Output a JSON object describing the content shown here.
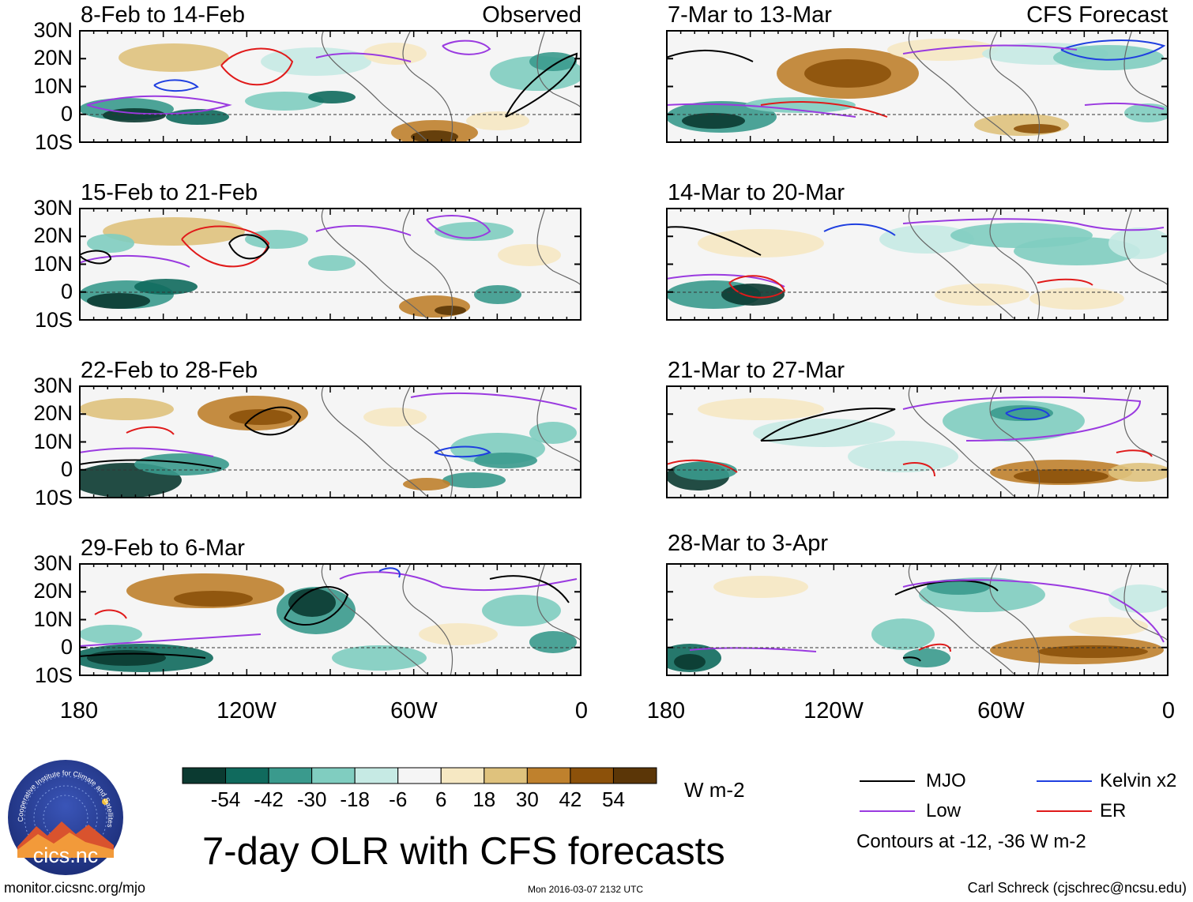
{
  "panels": [
    {
      "title": "8-Feb to 14-Feb",
      "tag": "Observed"
    },
    {
      "title": "15-Feb to 21-Feb",
      "tag": ""
    },
    {
      "title": "22-Feb to 28-Feb",
      "tag": ""
    },
    {
      "title": "29-Feb to 6-Mar",
      "tag": ""
    },
    {
      "title": "7-Mar to 13-Mar",
      "tag": "CFS Forecast"
    },
    {
      "title": "14-Mar to 20-Mar",
      "tag": ""
    },
    {
      "title": "21-Mar to 27-Mar",
      "tag": ""
    },
    {
      "title": "28-Mar to 3-Apr",
      "tag": ""
    }
  ],
  "lat_labels": [
    "30N",
    "20N",
    "10N",
    "0",
    "10S"
  ],
  "lon_labels": [
    "180",
    "120W",
    "60W",
    "0"
  ],
  "colorbar": {
    "colors": [
      "#0b3a31",
      "#106a5d",
      "#3a9a8d",
      "#80cdc0",
      "#c6eae4",
      "#f5f5f5",
      "#f6e8c3",
      "#dfc27d",
      "#bf812d",
      "#8c510a",
      "#5b3607"
    ],
    "labels": [
      "-54",
      "-42",
      "-30",
      "-18",
      "-6",
      "6",
      "18",
      "30",
      "42",
      "54"
    ],
    "units": "W m-2"
  },
  "title": "7-day OLR with CFS forecasts",
  "legend": {
    "items": [
      {
        "label": "MJO",
        "color": "#000000"
      },
      {
        "label": "Kelvin x2",
        "color": "#1f3fe0"
      },
      {
        "label": "Low",
        "color": "#9a3ae0"
      },
      {
        "label": "ER",
        "color": "#e01a1a"
      }
    ],
    "note": "Contours at -12, -36 W m-2"
  },
  "logo": {
    "text": "cics.nc",
    "ring_text": "Cooperative Institute for Climate and Satellites"
  },
  "footer": {
    "left": "monitor.cicsnc.org/mjo",
    "center": "Mon 2016-03-07 2132 UTC",
    "right": "Carl Schreck (cjschrec@ncsu.edu)"
  }
}
